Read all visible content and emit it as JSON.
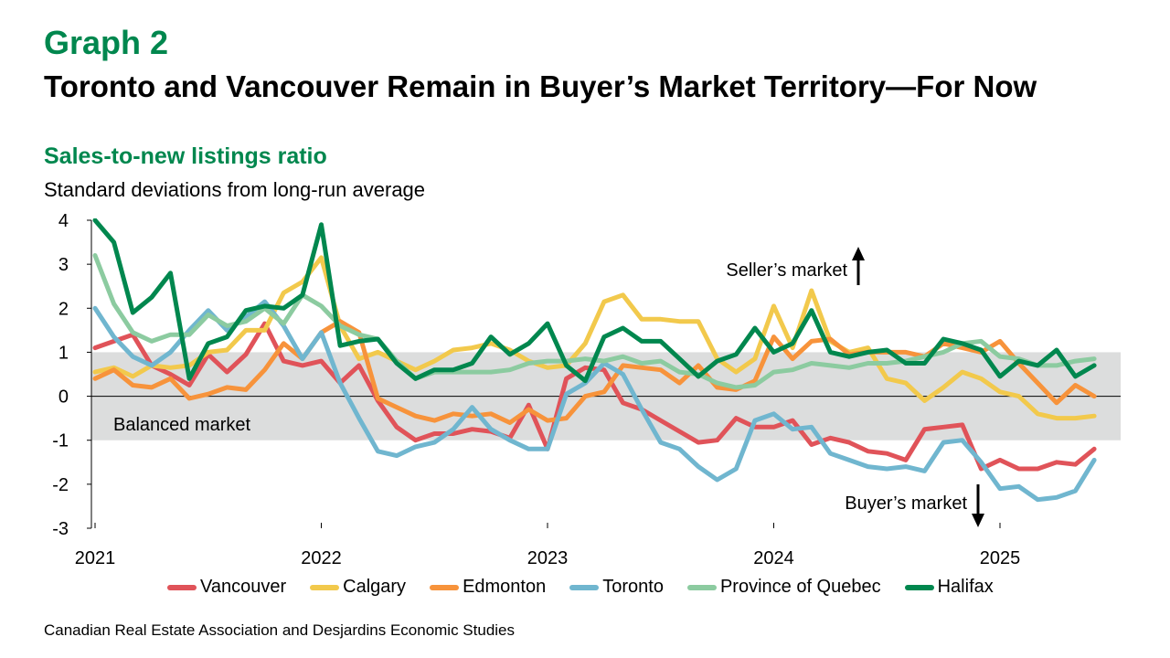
{
  "header": {
    "graph_label": "Graph 2",
    "title": "Toronto and Vancouver Remain in Buyer’s Market Territory—For Now",
    "subtitle": "Sales-to-new listings ratio",
    "description": "Standard deviations from long-run average"
  },
  "source": "Canadian Real Estate Association and Desjardins Economic Studies",
  "chart_data": {
    "type": "line",
    "ylim": [
      -3,
      4
    ],
    "yticks": [
      "4",
      "3",
      "2",
      "1",
      "0",
      "-1",
      "-2",
      "-3"
    ],
    "xticks": [
      "2021",
      "2022",
      "2023",
      "2024",
      "2025"
    ],
    "band": {
      "from": -1,
      "to": 1,
      "label": "Balanced market",
      "color": "#DCDDDD"
    },
    "annotations": {
      "seller": "Seller’s market",
      "buyer": "Buyer’s market"
    },
    "x_start": "2021-01",
    "x_end": "2025-07",
    "series": [
      {
        "name": "Vancouver",
        "color": "#E05359",
        "values": [
          1.1,
          1.25,
          1.4,
          0.7,
          0.5,
          0.25,
          0.95,
          0.55,
          0.95,
          1.65,
          0.8,
          0.7,
          0.8,
          0.3,
          0.7,
          -0.1,
          -0.7,
          -1.0,
          -0.85,
          -0.85,
          -0.75,
          -0.8,
          -0.95,
          -0.2,
          -1.2,
          0.4,
          0.65,
          0.6,
          -0.15,
          -0.3,
          -0.55,
          -0.8,
          -1.05,
          -1.0,
          -0.5,
          -0.7,
          -0.7,
          -0.55,
          -1.1,
          -0.95,
          -1.05,
          -1.25,
          -1.3,
          -1.45,
          -0.75,
          -0.7,
          -0.65,
          -1.65,
          -1.45,
          -1.65,
          -1.65,
          -1.5,
          -1.55,
          -1.2
        ]
      },
      {
        "name": "Calgary",
        "color": "#F2C94C",
        "values": [
          0.55,
          0.65,
          0.45,
          0.7,
          0.65,
          0.7,
          1.0,
          1.05,
          1.5,
          1.5,
          2.35,
          2.6,
          3.15,
          1.6,
          0.85,
          1.0,
          0.8,
          0.6,
          0.8,
          1.05,
          1.1,
          1.2,
          1.05,
          0.8,
          0.65,
          0.7,
          1.2,
          2.15,
          2.3,
          1.75,
          1.75,
          1.7,
          1.7,
          0.85,
          0.55,
          0.85,
          2.05,
          1.1,
          2.4,
          1.25,
          1.0,
          1.1,
          0.4,
          0.3,
          -0.1,
          0.2,
          0.55,
          0.4,
          0.1,
          0.0,
          -0.4,
          -0.5,
          -0.5,
          -0.45
        ]
      },
      {
        "name": "Edmonton",
        "color": "#F7933B",
        "values": [
          0.4,
          0.6,
          0.25,
          0.2,
          0.4,
          -0.05,
          0.05,
          0.2,
          0.15,
          0.6,
          1.2,
          0.85,
          1.45,
          1.7,
          1.45,
          -0.05,
          -0.25,
          -0.45,
          -0.55,
          -0.4,
          -0.45,
          -0.4,
          -0.6,
          -0.3,
          -0.55,
          -0.5,
          0.0,
          0.1,
          0.7,
          0.65,
          0.6,
          0.3,
          0.7,
          0.2,
          0.15,
          0.35,
          1.35,
          0.85,
          1.25,
          1.3,
          0.95,
          1.0,
          1.0,
          1.0,
          0.9,
          1.2,
          1.1,
          1.0,
          1.25,
          0.75,
          0.3,
          -0.15,
          0.25,
          0.0
        ]
      },
      {
        "name": "Toronto",
        "color": "#70B6CF",
        "values": [
          2.0,
          1.35,
          0.9,
          0.7,
          1.0,
          1.5,
          1.95,
          1.5,
          1.8,
          2.15,
          1.6,
          0.85,
          1.45,
          0.3,
          -0.5,
          -1.25,
          -1.35,
          -1.15,
          -1.05,
          -0.75,
          -0.25,
          -0.75,
          -1.0,
          -1.2,
          -1.2,
          0.05,
          0.3,
          0.75,
          0.5,
          -0.3,
          -1.05,
          -1.2,
          -1.6,
          -1.9,
          -1.65,
          -0.55,
          -0.4,
          -0.75,
          -0.7,
          -1.3,
          -1.45,
          -1.6,
          -1.65,
          -1.6,
          -1.7,
          -1.05,
          -1.0,
          -1.5,
          -2.1,
          -2.05,
          -2.35,
          -2.3,
          -2.15,
          -1.45
        ]
      },
      {
        "name": "Province of Quebec",
        "color": "#8CCBA0",
        "values": [
          3.2,
          2.1,
          1.45,
          1.25,
          1.4,
          1.4,
          1.85,
          1.6,
          1.7,
          2.0,
          1.65,
          2.3,
          2.05,
          1.6,
          1.4,
          1.3,
          0.8,
          0.4,
          0.55,
          0.55,
          0.55,
          0.55,
          0.6,
          0.75,
          0.8,
          0.8,
          0.85,
          0.8,
          0.9,
          0.75,
          0.8,
          0.55,
          0.5,
          0.3,
          0.2,
          0.25,
          0.55,
          0.6,
          0.75,
          0.7,
          0.65,
          0.75,
          0.75,
          0.8,
          0.9,
          1.0,
          1.2,
          1.25,
          0.9,
          0.85,
          0.7,
          0.7,
          0.8,
          0.85
        ]
      },
      {
        "name": "Halifax",
        "color": "#00874E",
        "values": [
          4.0,
          3.5,
          1.9,
          2.25,
          2.8,
          0.4,
          1.2,
          1.35,
          1.95,
          2.05,
          2.0,
          2.3,
          3.9,
          1.15,
          1.25,
          1.3,
          0.75,
          0.4,
          0.6,
          0.6,
          0.75,
          1.35,
          0.95,
          1.2,
          1.65,
          0.7,
          0.35,
          1.35,
          1.55,
          1.25,
          1.25,
          0.85,
          0.45,
          0.8,
          0.95,
          1.55,
          1.0,
          1.2,
          1.95,
          1.0,
          0.9,
          1.0,
          1.05,
          0.75,
          0.75,
          1.3,
          1.2,
          1.05,
          0.45,
          0.8,
          0.7,
          1.05,
          0.45,
          0.7
        ]
      }
    ]
  }
}
